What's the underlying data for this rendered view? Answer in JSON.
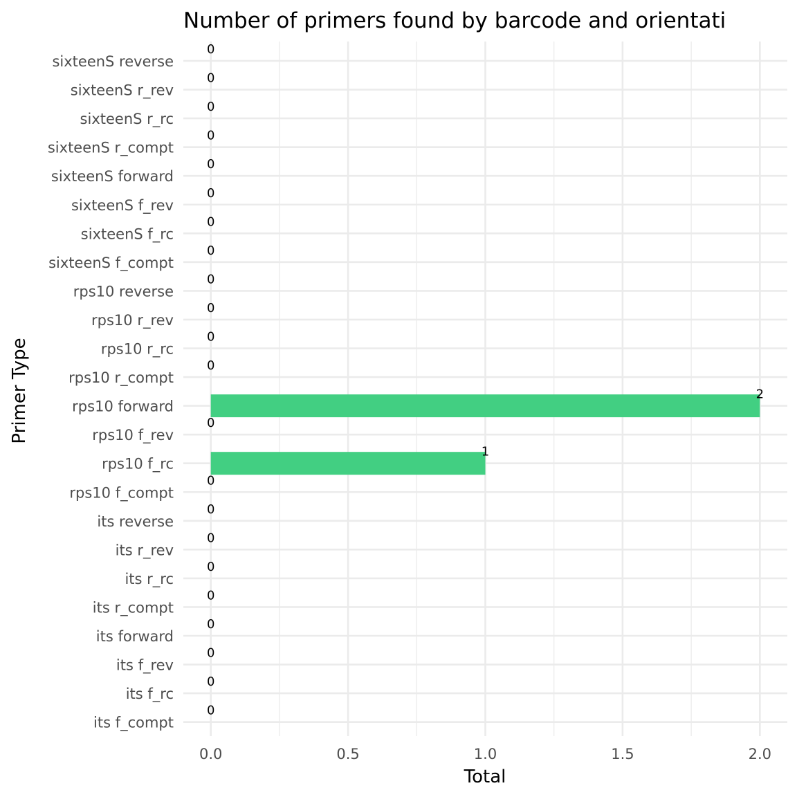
{
  "chart_data": {
    "type": "bar",
    "orientation": "horizontal",
    "title": "Number of primers found by barcode and orientati",
    "xlabel": "Total",
    "ylabel": "Primer Type",
    "xlim": [
      -0.1,
      2.1
    ],
    "x_ticks": [
      0.0,
      0.5,
      1.0,
      1.5,
      2.0
    ],
    "x_tick_labels": [
      "0.0",
      "0.5",
      "1.0",
      "1.5",
      "2.0"
    ],
    "grid": true,
    "legend": "none",
    "bar_color": "#42CF82",
    "categories": [
      "sixteenS reverse",
      "sixteenS r_rev",
      "sixteenS r_rc",
      "sixteenS r_compt",
      "sixteenS forward",
      "sixteenS f_rev",
      "sixteenS f_rc",
      "sixteenS f_compt",
      "rps10 reverse",
      "rps10 r_rev",
      "rps10 r_rc",
      "rps10 r_compt",
      "rps10 forward",
      "rps10 f_rev",
      "rps10 f_rc",
      "rps10 f_compt",
      "its reverse",
      "its r_rev",
      "its r_rc",
      "its r_compt",
      "its forward",
      "its f_rev",
      "its f_rc",
      "its f_compt"
    ],
    "values": [
      0,
      0,
      0,
      0,
      0,
      0,
      0,
      0,
      0,
      0,
      0,
      0,
      2,
      0,
      1,
      0,
      0,
      0,
      0,
      0,
      0,
      0,
      0,
      0
    ],
    "data_labels": [
      "0",
      "0",
      "0",
      "0",
      "0",
      "0",
      "0",
      "0",
      "0",
      "0",
      "0",
      "0",
      "2",
      "0",
      "1",
      "0",
      "0",
      "0",
      "0",
      "0",
      "0",
      "0",
      "0",
      "0"
    ]
  }
}
